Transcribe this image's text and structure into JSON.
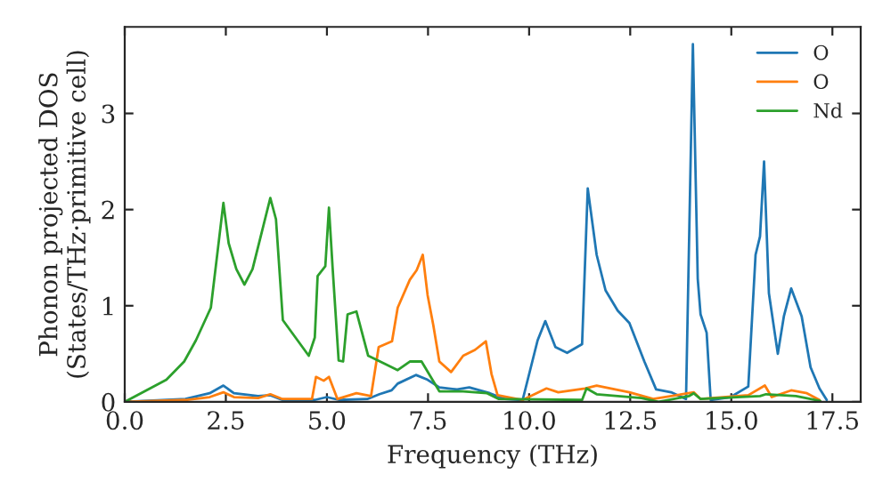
{
  "chart_data": {
    "type": "line",
    "xlabel": "Frequency (THz)",
    "ylabel": "Phonon projected DOS\n(States/THz·primitive cell)",
    "xlim": [
      0,
      18.2
    ],
    "ylim": [
      0,
      3.9
    ],
    "xticks": [
      {
        "value": 0,
        "label": "0.0"
      },
      {
        "value": 2.5,
        "label": "2.5"
      },
      {
        "value": 5,
        "label": "5.0"
      },
      {
        "value": 7.5,
        "label": "7.5"
      },
      {
        "value": 10,
        "label": "10.0"
      },
      {
        "value": 12.5,
        "label": "12.5"
      },
      {
        "value": 15,
        "label": "15.0"
      },
      {
        "value": 17.5,
        "label": "17.5"
      }
    ],
    "yticks": [
      0,
      1,
      2,
      3
    ],
    "grid": false,
    "legend": "top right",
    "marker": "none",
    "line_style": "solid",
    "series": [
      {
        "name": "O",
        "color": "#1f77b4",
        "x": [
          0,
          1.5,
          2.1,
          2.44,
          2.7,
          3.3,
          3.6,
          3.9,
          4.7,
          5.0,
          5.3,
          6.0,
          6.3,
          6.6,
          6.75,
          7.2,
          7.49,
          7.78,
          8.22,
          8.52,
          9.03,
          9.4,
          9.84,
          10.21,
          10.4,
          10.65,
          10.94,
          11.31,
          11.45,
          11.67,
          11.89,
          12.19,
          12.48,
          12.85,
          13.14,
          13.51,
          13.88,
          14.05,
          14.17,
          14.24,
          14.39,
          14.49,
          14.98,
          15.42,
          15.6,
          15.71,
          15.81,
          15.93,
          16.15,
          16.3,
          16.48,
          16.74,
          16.96,
          17.18,
          17.36
        ],
        "values": [
          0,
          0.03,
          0.09,
          0.17,
          0.09,
          0.06,
          0.07,
          0.02,
          0.02,
          0.05,
          0.02,
          0.03,
          0.08,
          0.12,
          0.19,
          0.28,
          0.23,
          0.15,
          0.13,
          0.15,
          0.09,
          0.03,
          0.02,
          0.64,
          0.84,
          0.57,
          0.51,
          0.6,
          2.22,
          1.53,
          1.16,
          0.95,
          0.82,
          0.42,
          0.13,
          0.1,
          0.03,
          3.72,
          1.28,
          0.91,
          0.72,
          0.02,
          0.05,
          0.16,
          1.53,
          1.72,
          2.5,
          1.13,
          0.5,
          0.89,
          1.18,
          0.89,
          0.36,
          0.14,
          0.02
        ]
      },
      {
        "name": "O",
        "color": "#ff7f0e",
        "x": [
          0,
          1.5,
          2.1,
          2.44,
          2.7,
          3.3,
          3.6,
          3.9,
          4.63,
          4.73,
          4.92,
          5.05,
          5.26,
          5.73,
          6.09,
          6.28,
          6.61,
          6.75,
          7.05,
          7.22,
          7.37,
          7.49,
          7.63,
          7.78,
          8.07,
          8.37,
          8.66,
          8.93,
          9.07,
          9.22,
          9.84,
          10.43,
          10.72,
          11.38,
          11.67,
          12.48,
          13.07,
          14.07,
          14.24,
          15.42,
          15.83,
          16.0,
          16.48,
          16.87,
          17.18
        ],
        "values": [
          0,
          0.02,
          0.05,
          0.1,
          0.05,
          0.04,
          0.08,
          0.03,
          0.03,
          0.26,
          0.22,
          0.26,
          0.03,
          0.09,
          0.06,
          0.57,
          0.63,
          0.98,
          1.27,
          1.37,
          1.53,
          1.11,
          0.8,
          0.42,
          0.31,
          0.48,
          0.54,
          0.63,
          0.29,
          0.07,
          0.02,
          0.14,
          0.1,
          0.14,
          0.17,
          0.1,
          0.03,
          0.1,
          0.03,
          0.07,
          0.17,
          0.05,
          0.12,
          0.09,
          0.02
        ]
      },
      {
        "name": "Nd",
        "color": "#2ca02c",
        "x": [
          0,
          1.03,
          1.47,
          1.76,
          2.13,
          2.44,
          2.57,
          2.76,
          2.96,
          3.16,
          3.35,
          3.6,
          3.74,
          3.91,
          4.55,
          4.7,
          4.77,
          4.96,
          5.05,
          5.14,
          5.29,
          5.4,
          5.51,
          5.73,
          6.02,
          6.46,
          6.75,
          7.05,
          7.34,
          7.78,
          8.37,
          8.96,
          9.25,
          11.31,
          11.42,
          11.67,
          12.78,
          13.2,
          13.95,
          14.07,
          14.24,
          15.71,
          15.86,
          16.6,
          17.2
        ],
        "values": [
          0,
          0.23,
          0.42,
          0.64,
          0.98,
          2.07,
          1.65,
          1.38,
          1.22,
          1.38,
          1.7,
          2.12,
          1.9,
          0.85,
          0.48,
          0.67,
          1.31,
          1.41,
          2.02,
          1.4,
          0.43,
          0.42,
          0.91,
          0.94,
          0.48,
          0.39,
          0.33,
          0.42,
          0.42,
          0.11,
          0.11,
          0.09,
          0.03,
          0.02,
          0.14,
          0.08,
          0.04,
          0.0,
          0.06,
          0.09,
          0.03,
          0.06,
          0.08,
          0.06,
          0.01
        ]
      }
    ]
  }
}
